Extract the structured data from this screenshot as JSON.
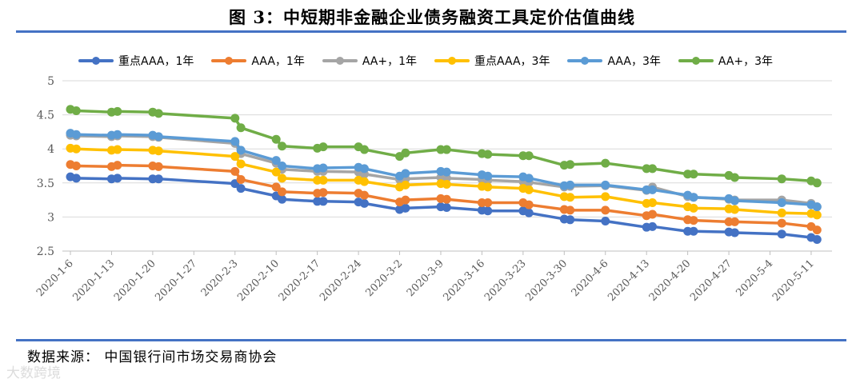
{
  "header": {
    "title": "图 3：中短期非金融企业债务融资工具定价估值曲线"
  },
  "footer": {
    "source": "数据来源：    中国银行间市场交易商协会",
    "watermark": "大数跨境"
  },
  "colors": {
    "rule": "#4472c4",
    "grid": "#d9d9d9"
  },
  "chart_data": {
    "type": "line",
    "title": "图 3：中短期非金融企业债务融资工具定价估值曲线",
    "ylim": [
      2.5,
      5
    ],
    "yticks": [
      "2.5",
      "3",
      "3.5",
      "4",
      "4.5",
      "5"
    ],
    "xtick_labels": [
      "2020-1-6",
      "2020-1-13",
      "2020-1-20",
      "2020-1-27",
      "2020-2-3",
      "2020-2-10",
      "2020-2-17",
      "2020-2-24",
      "2020-3-2",
      "2020-3-9",
      "2020-3-16",
      "2020-3-23",
      "2020-3-30",
      "2020-4-6",
      "2020-4-13",
      "2020-4-20",
      "2020-4-27",
      "2020-5-4",
      "2020-5-11"
    ],
    "legend_position": "top",
    "grid": "horizontal",
    "x": [
      "2020-1-6",
      "2020-1-7",
      "2020-1-13",
      "2020-1-14",
      "2020-1-20",
      "2020-1-21",
      "2020-2-3",
      "2020-2-4",
      "2020-2-10",
      "2020-2-11",
      "2020-2-17",
      "2020-2-18",
      "2020-2-24",
      "2020-2-25",
      "2020-3-2",
      "2020-3-3",
      "2020-3-9",
      "2020-3-10",
      "2020-3-16",
      "2020-3-17",
      "2020-3-23",
      "2020-3-24",
      "2020-3-30",
      "2020-3-31",
      "2020-4-6",
      "2020-4-13",
      "2020-4-14",
      "2020-4-20",
      "2020-4-21",
      "2020-4-27",
      "2020-4-28",
      "2020-5-6",
      "2020-5-11",
      "2020-5-12"
    ],
    "series": [
      {
        "name": "重点AAA，1年",
        "color": "#4472c4",
        "values": [
          3.59,
          3.57,
          3.56,
          3.57,
          3.56,
          3.56,
          3.49,
          3.42,
          3.31,
          3.26,
          3.23,
          3.23,
          3.22,
          3.2,
          3.11,
          3.13,
          3.15,
          3.14,
          3.1,
          3.09,
          3.09,
          3.06,
          2.97,
          2.96,
          2.94,
          2.85,
          2.86,
          2.79,
          2.79,
          2.78,
          2.77,
          2.75,
          2.7,
          2.67
        ]
      },
      {
        "name": "AAA，1年",
        "color": "#ed7d31",
        "values": [
          3.77,
          3.75,
          3.74,
          3.76,
          3.75,
          3.74,
          3.67,
          3.55,
          3.44,
          3.37,
          3.35,
          3.36,
          3.35,
          3.32,
          3.22,
          3.25,
          3.27,
          3.26,
          3.21,
          3.21,
          3.21,
          3.18,
          3.11,
          3.1,
          3.1,
          3.02,
          3.04,
          2.96,
          2.95,
          2.93,
          2.93,
          2.91,
          2.86,
          2.81
        ]
      },
      {
        "name": "AA+，1年",
        "color": "#a5a5a5",
        "values": [
          4.2,
          4.19,
          4.18,
          4.19,
          4.18,
          4.17,
          4.08,
          3.93,
          3.79,
          3.7,
          3.67,
          3.67,
          3.66,
          3.63,
          3.55,
          3.56,
          3.58,
          3.57,
          3.55,
          3.54,
          3.52,
          3.51,
          3.44,
          3.45,
          3.46,
          3.39,
          3.44,
          3.3,
          3.29,
          3.26,
          3.25,
          3.25,
          3.2,
          3.15
        ]
      },
      {
        "name": "重点AAA，3年",
        "color": "#ffc000",
        "values": [
          4.01,
          4.0,
          3.98,
          3.99,
          3.98,
          3.97,
          3.89,
          3.78,
          3.66,
          3.57,
          3.54,
          3.54,
          3.54,
          3.52,
          3.44,
          3.47,
          3.49,
          3.48,
          3.45,
          3.44,
          3.42,
          3.4,
          3.3,
          3.29,
          3.3,
          3.2,
          3.21,
          3.15,
          3.13,
          3.12,
          3.11,
          3.06,
          3.05,
          3.03
        ]
      },
      {
        "name": "AAA，3年",
        "color": "#5b9bd5",
        "values": [
          4.23,
          4.21,
          4.2,
          4.21,
          4.2,
          4.18,
          4.11,
          3.98,
          3.83,
          3.75,
          3.71,
          3.72,
          3.73,
          3.71,
          3.6,
          3.64,
          3.67,
          3.66,
          3.62,
          3.6,
          3.59,
          3.57,
          3.46,
          3.47,
          3.47,
          3.4,
          3.4,
          3.32,
          3.29,
          3.27,
          3.24,
          3.21,
          3.18,
          3.15
        ]
      },
      {
        "name": "AA+，3年",
        "color": "#70ad47",
        "values": [
          4.58,
          4.56,
          4.54,
          4.55,
          4.54,
          4.52,
          4.45,
          4.31,
          4.14,
          4.04,
          4.01,
          4.03,
          4.03,
          3.99,
          3.89,
          3.94,
          3.99,
          3.99,
          3.93,
          3.92,
          3.9,
          3.9,
          3.76,
          3.77,
          3.79,
          3.71,
          3.71,
          3.63,
          3.63,
          3.61,
          3.58,
          3.56,
          3.53,
          3.5
        ]
      }
    ]
  }
}
